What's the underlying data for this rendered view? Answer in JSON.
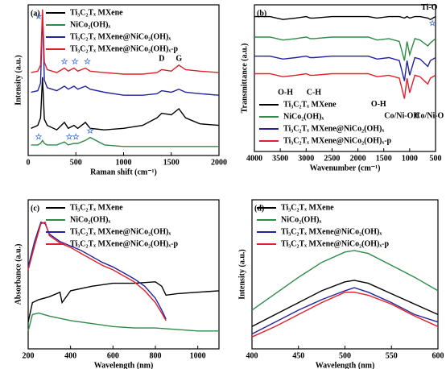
{
  "chart_data": [
    {
      "type": "line",
      "label": "(a)",
      "xlabel": "Raman shift (cm⁻¹)",
      "ylabel": "Intensity (a.u.)",
      "xlim": [
        0,
        2000
      ],
      "ylim": [
        0,
        100
      ],
      "xticks": [
        0,
        500,
        1000,
        1500,
        2000
      ],
      "legend": "upper right",
      "x": [
        30,
        100,
        130,
        150,
        170,
        200,
        300,
        380,
        420,
        480,
        520,
        600,
        650,
        800,
        1000,
        1200,
        1350,
        1400,
        1500,
        1580,
        1650,
        1800,
        2000
      ],
      "series": [
        {
          "name": "Ti₃C₂Tₓ MXene",
          "color": "#000000",
          "values": [
            18,
            20,
            25,
            52,
            24,
            20,
            17,
            22,
            18,
            20,
            18,
            22,
            18,
            17,
            18,
            20,
            25,
            28,
            27,
            31,
            25,
            21,
            20
          ]
        },
        {
          "name": "NiCo₂(OH)ₓ",
          "color": "#2e8b4a",
          "values": [
            7,
            7,
            8,
            10,
            8,
            7,
            7,
            9,
            7,
            8,
            8,
            10,
            12,
            7,
            6,
            6,
            6,
            6,
            6,
            6,
            6,
            6,
            6
          ]
        },
        {
          "name": "Ti₃C₂Tₓ MXene@NiCo₂(OH)ₓ",
          "color": "#23239c",
          "values": [
            42,
            43,
            48,
            95,
            50,
            45,
            43,
            46,
            44,
            46,
            44,
            46,
            44,
            42,
            40,
            40,
            41,
            43,
            42,
            44,
            42,
            41,
            40
          ]
        },
        {
          "name": "Ti₃C₂Tₓ MXene@NiCo₂(OH)ₓ-p",
          "color": "#e0202a",
          "values": [
            55,
            56,
            60,
            97,
            62,
            57,
            55,
            58,
            56,
            58,
            56,
            58,
            56,
            55,
            54,
            54,
            55,
            57,
            56,
            60,
            57,
            56,
            55
          ]
        }
      ],
      "annotations": [
        {
          "text": "☆",
          "x": 110,
          "y": 92,
          "color": "#3a6fd8"
        },
        {
          "text": "☆",
          "x": 380,
          "y": 62,
          "color": "#3a6fd8"
        },
        {
          "text": "☆",
          "x": 490,
          "y": 62,
          "color": "#3a6fd8"
        },
        {
          "text": "☆",
          "x": 620,
          "y": 62,
          "color": "#3a6fd8"
        },
        {
          "text": "☆",
          "x": 110,
          "y": 12,
          "color": "#3a6fd8"
        },
        {
          "text": "☆",
          "x": 430,
          "y": 12,
          "color": "#3a6fd8"
        },
        {
          "text": "☆",
          "x": 500,
          "y": 12,
          "color": "#3a6fd8"
        },
        {
          "text": "☆",
          "x": 650,
          "y": 16,
          "color": "#3a6fd8"
        },
        {
          "text": "D",
          "x": 1400,
          "y": 64,
          "color": "#000000"
        },
        {
          "text": "G",
          "x": 1580,
          "y": 64,
          "color": "#000000"
        }
      ]
    },
    {
      "type": "line",
      "label": "(b)",
      "xlabel": "Wavenumber (cm⁻¹)",
      "ylabel": "Transmittance (a.u.)",
      "xlim": [
        4000,
        500
      ],
      "ylim": [
        0,
        100
      ],
      "xticks": [
        4000,
        3500,
        3000,
        2500,
        2000,
        1500,
        1000,
        500
      ],
      "legend": "lower left",
      "x": [
        4000,
        3700,
        3450,
        3200,
        3000,
        2920,
        2850,
        2500,
        2000,
        1800,
        1630,
        1400,
        1200,
        1100,
        1050,
        1000,
        900,
        800,
        650,
        600,
        500
      ],
      "series": [
        {
          "name": "Ti₃C₂Tₓ MXene",
          "color": "#000000",
          "values": [
            92,
            92,
            90,
            91,
            92,
            91,
            91,
            92,
            92,
            92,
            91,
            92,
            92,
            91,
            92,
            91,
            92,
            92,
            91,
            90,
            92
          ]
        },
        {
          "name": "NiCo₂(OH)ₓ",
          "color": "#2e8b4a",
          "values": [
            78,
            78,
            76,
            77,
            78,
            77,
            77,
            78,
            78,
            78,
            76,
            77,
            75,
            62,
            75,
            66,
            77,
            76,
            72,
            74,
            77
          ]
        },
        {
          "name": "Ti₃C₂Tₓ MXene@NiCo₂(OH)ₓ",
          "color": "#23239c",
          "values": [
            65,
            65,
            63,
            64,
            65,
            64,
            64,
            65,
            65,
            65,
            63,
            64,
            62,
            48,
            62,
            52,
            64,
            63,
            58,
            62,
            64
          ]
        },
        {
          "name": "Ti₃C₂Tₓ MXene@NiCo₂(OH)ₓ-p",
          "color": "#e0202a",
          "values": [
            53,
            53,
            51,
            52,
            53,
            52,
            52,
            53,
            53,
            53,
            51,
            52,
            50,
            36,
            50,
            40,
            52,
            51,
            46,
            50,
            52
          ]
        }
      ],
      "annotations": [
        {
          "text": "O-H",
          "x": 3400,
          "y": 40,
          "color": "#000000"
        },
        {
          "text": "C-H",
          "x": 2850,
          "y": 40,
          "color": "#000000"
        },
        {
          "text": "O-H",
          "x": 1600,
          "y": 32,
          "color": "#000000"
        },
        {
          "text": "Co/Ni-OH",
          "x": 1150,
          "y": 24,
          "color": "#000000"
        },
        {
          "text": "Co/Ni-O",
          "x": 620,
          "y": 24,
          "color": "#000000"
        },
        {
          "text": "Ti-O",
          "x": 620,
          "y": 98,
          "color": "#000000"
        },
        {
          "text": "☆",
          "x": 560,
          "y": 87,
          "color": "#3a6fd8"
        }
      ]
    },
    {
      "type": "line",
      "label": "(c)",
      "xlabel": "Wavelength (nm)",
      "ylabel": "Absorbance (a.u.)",
      "xlim": [
        200,
        1100
      ],
      "ylim": [
        0,
        100
      ],
      "xticks": [
        200,
        400,
        600,
        800,
        1000
      ],
      "legend": "upper center",
      "series": [
        {
          "name": "Ti₃C₂Tₓ MXene",
          "color": "#000000",
          "x": [
            200,
            220,
            250,
            300,
            350,
            360,
            400,
            500,
            600,
            700,
            800,
            830,
            850,
            900,
            1000,
            1100
          ],
          "values": [
            18,
            31,
            33,
            35,
            38,
            31,
            39,
            42,
            44,
            44,
            45,
            42,
            36,
            37,
            38,
            39
          ]
        },
        {
          "name": "NiCo₂(OH)ₓ",
          "color": "#2e8b4a",
          "x": [
            200,
            220,
            250,
            300,
            400,
            500,
            600,
            700,
            800,
            900,
            1000,
            1100
          ],
          "values": [
            12,
            23,
            24,
            22,
            19,
            17,
            15,
            14,
            14,
            13,
            12,
            12
          ]
        },
        {
          "name": "Ti₃C₂Tₓ MXene@NiCo₂(OH)ₓ",
          "color": "#23239c",
          "x": [
            200,
            230,
            260,
            280,
            300,
            350,
            400,
            450,
            500,
            550,
            600,
            650,
            700,
            750,
            800,
            830,
            850
          ],
          "values": [
            55,
            72,
            85,
            84,
            77,
            72,
            69,
            66,
            62,
            58,
            55,
            51,
            47,
            42,
            34,
            26,
            20
          ]
        },
        {
          "name": "Ti₃C₂Tₓ MXene@NiCo₂(OH)ₓ-p",
          "color": "#e0202a",
          "x": [
            200,
            230,
            260,
            280,
            300,
            350,
            400,
            450,
            500,
            550,
            600,
            650,
            700,
            750,
            800,
            830,
            850
          ],
          "values": [
            53,
            69,
            84,
            85,
            76,
            71,
            68,
            64,
            60,
            56,
            53,
            49,
            45,
            39,
            31,
            24,
            19
          ]
        }
      ]
    },
    {
      "type": "line",
      "label": "(d)",
      "xlabel": "Wavelength (nm)",
      "ylabel": "Intensity (a.u.)",
      "xlim": [
        400,
        600
      ],
      "ylim": [
        0,
        100
      ],
      "xticks": [
        400,
        450,
        500,
        550,
        600
      ],
      "legend": "upper left",
      "x": [
        400,
        425,
        450,
        475,
        500,
        510,
        525,
        550,
        575,
        600
      ],
      "series": [
        {
          "name": "Ti₃C₂Tₓ MXene",
          "color": "#000000",
          "values": [
            15,
            23,
            31,
            39,
            45,
            46,
            44,
            37,
            30,
            23
          ]
        },
        {
          "name": "NiCo₂(OH)ₓ",
          "color": "#2e8b4a",
          "values": [
            26,
            37,
            48,
            58,
            65,
            66,
            64,
            56,
            48,
            39
          ]
        },
        {
          "name": "Ti₃C₂Tₓ MXene@NiCo₂(OH)ₓ",
          "color": "#23239c",
          "values": [
            10,
            18,
            26,
            33,
            39,
            41,
            38,
            31,
            23,
            18
          ]
        },
        {
          "name": "Ti₃C₂Tₓ MXene@NiCo₂(OH)ₓ-p",
          "color": "#e0202a",
          "values": [
            8,
            15,
            23,
            31,
            38,
            38,
            36,
            30,
            22,
            15
          ]
        }
      ]
    }
  ]
}
